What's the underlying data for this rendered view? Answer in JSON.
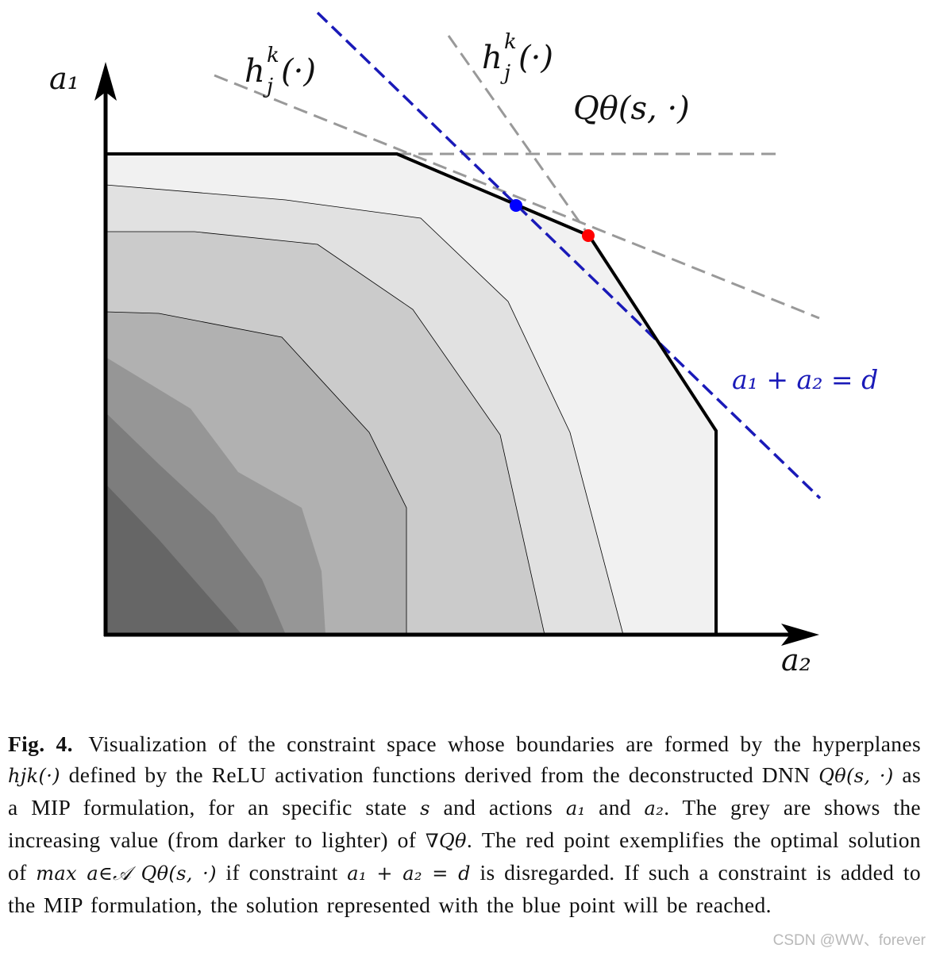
{
  "figure": {
    "axis_labels": {
      "a1": "a₁",
      "a2": "a₂"
    },
    "hyperplane_labels": [
      "h",
      "h"
    ],
    "hyperplane_sup": "k",
    "hyperplane_sub": "j",
    "hyperplane_arg": "(·)",
    "q_label": "Qθ(s, ·)",
    "constraint_label": "a₁ + a₂ = d",
    "colors": {
      "boundary": "#000000",
      "hyperplane": "#999999",
      "constraint_line": "#1a1ab8",
      "optimal_unconstrained": "#ff0000",
      "optimal_constrained": "#0000ff",
      "shade_levels": [
        "#f1f1f1",
        "#e1e1e1",
        "#cbcbcb",
        "#b1b1b1",
        "#969696",
        "#7d7d7d",
        "#666666"
      ]
    }
  },
  "caption": {
    "label": "Fig. 4.",
    "text_1": " Visualization of the constraint space whose boundaries are formed by the hyperplanes ",
    "h_term": "hjk(·)",
    "text_2": " defined by the ReLU activation functions derived from the deconstructed DNN ",
    "q_term": "Qθ(s, ·)",
    "text_3": " as a MIP formulation, for an specific state ",
    "s_term": "s",
    "text_4": " and actions ",
    "a1_term": "a₁",
    "text_5": " and ",
    "a2_term": "a₂",
    "text_6": ". The grey are shows the increasing value (from darker to lighter) of ",
    "grad_term": "∇Qθ",
    "text_7": ". The red point exemplifies the optimal solution of ",
    "max_term": "max a∈𝒜 Qθ(s, ·)",
    "text_8": " if constraint ",
    "constraint_term": "a₁ + a₂ = d",
    "text_9": " is disregarded. If such a constraint is added to the MIP formulation, the solution represented with the blue point will be reached."
  },
  "watermark": "CSDN @WW、forever"
}
